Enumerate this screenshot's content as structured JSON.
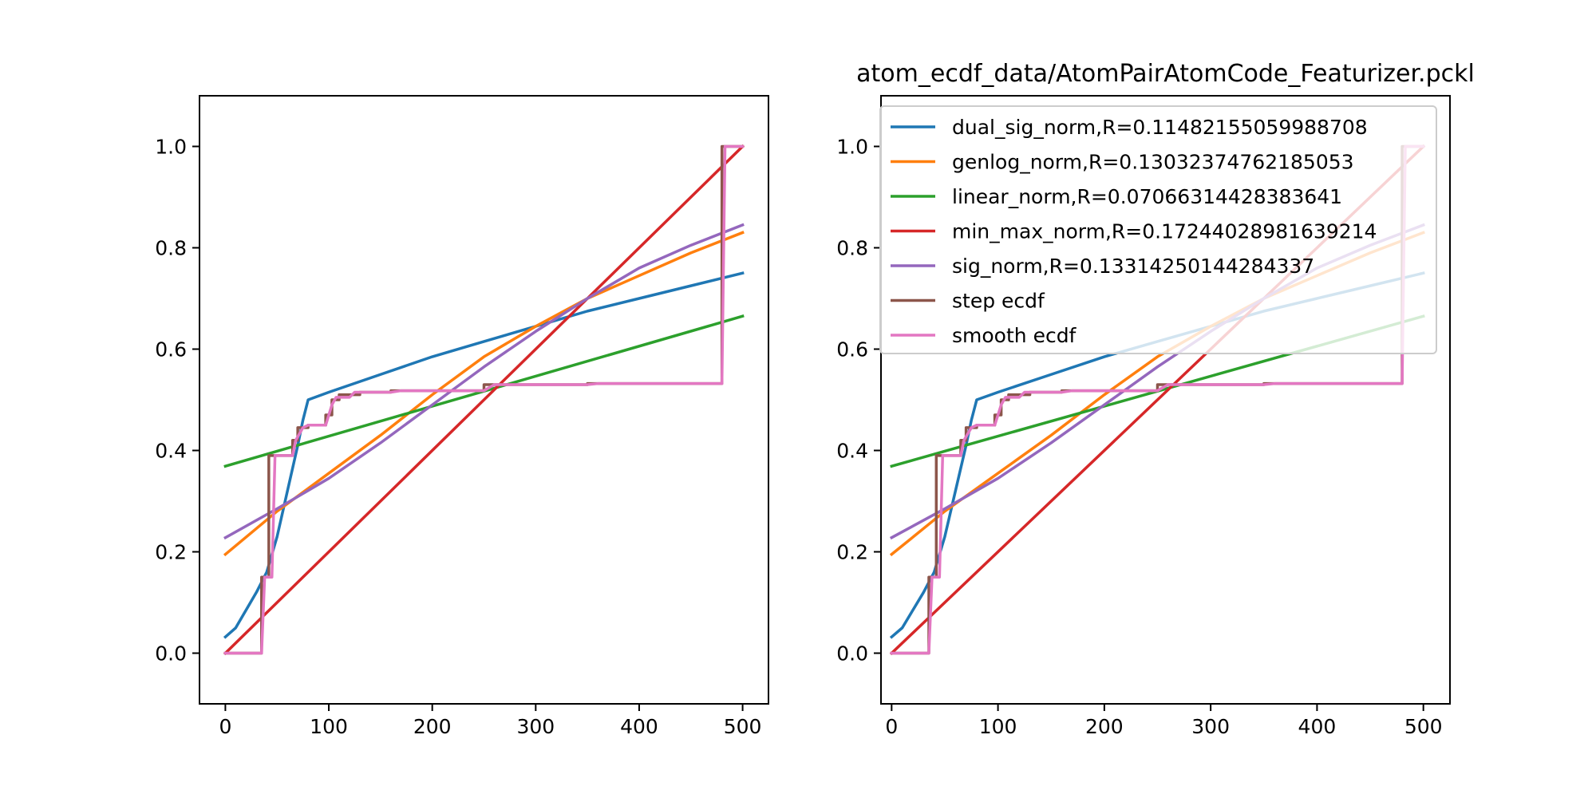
{
  "chart_data": [
    {
      "type": "line",
      "title": "",
      "xlabel": "",
      "ylabel": "",
      "xlim": [
        -25,
        525
      ],
      "ylim": [
        -0.1,
        1.1
      ],
      "xticks": [
        0,
        100,
        200,
        300,
        400,
        500
      ],
      "xtick_labels": [
        "0",
        "100",
        "200",
        "300",
        "400",
        "500"
      ],
      "yticks": [
        0.0,
        0.2,
        0.4,
        0.6,
        0.8,
        1.0
      ],
      "ytick_labels": [
        "0.0",
        "0.2",
        "0.4",
        "0.6",
        "0.8",
        "1.0"
      ],
      "grid": false,
      "legend": false,
      "series": [
        {
          "name": "dual_sig_norm,R=0.11482155059988708",
          "color": "#1f77b4",
          "x": [
            0,
            10,
            20,
            30,
            40,
            50,
            60,
            70,
            75,
            80,
            100,
            150,
            200,
            250,
            300,
            350,
            400,
            450,
            500
          ],
          "y": [
            0.032,
            0.05,
            0.085,
            0.12,
            0.16,
            0.23,
            0.32,
            0.41,
            0.46,
            0.5,
            0.515,
            0.55,
            0.585,
            0.615,
            0.645,
            0.675,
            0.7,
            0.725,
            0.75
          ]
        },
        {
          "name": "genlog_norm,R=0.13032374762185053",
          "color": "#ff7f0e",
          "x": [
            0,
            50,
            100,
            150,
            200,
            250,
            300,
            350,
            400,
            450,
            500
          ],
          "y": [
            0.195,
            0.28,
            0.355,
            0.43,
            0.51,
            0.585,
            0.645,
            0.7,
            0.745,
            0.79,
            0.83
          ]
        },
        {
          "name": "linear_norm,R=0.07066314428383641",
          "color": "#2ca02c",
          "x": [
            0,
            500
          ],
          "y": [
            0.369,
            0.665
          ]
        },
        {
          "name": "min_max_norm,R=0.17244028981639214",
          "color": "#d62728",
          "x": [
            0,
            500
          ],
          "y": [
            0.0,
            1.0
          ]
        },
        {
          "name": "sig_norm,R=0.13314250144284337",
          "color": "#9467bd",
          "x": [
            0,
            50,
            100,
            150,
            200,
            250,
            300,
            350,
            400,
            450,
            500
          ],
          "y": [
            0.228,
            0.285,
            0.345,
            0.415,
            0.49,
            0.565,
            0.635,
            0.7,
            0.76,
            0.805,
            0.845
          ]
        },
        {
          "name": "step ecdf",
          "color": "#8c564b",
          "x": [
            0,
            35,
            35,
            42,
            42,
            65,
            65,
            70,
            70,
            80,
            80,
            97,
            97,
            103,
            103,
            110,
            110,
            130,
            130,
            160,
            160,
            250,
            250,
            350,
            350,
            480,
            480,
            500
          ],
          "y": [
            0.0,
            0.0,
            0.15,
            0.15,
            0.39,
            0.39,
            0.42,
            0.42,
            0.445,
            0.445,
            0.45,
            0.45,
            0.47,
            0.47,
            0.5,
            0.5,
            0.51,
            0.51,
            0.515,
            0.515,
            0.518,
            0.518,
            0.53,
            0.53,
            0.532,
            0.532,
            1.0,
            1.0
          ]
        },
        {
          "name": "smooth ecdf",
          "color": "#e377c2",
          "x": [
            0,
            35,
            38,
            45,
            48,
            65,
            68,
            75,
            80,
            97,
            100,
            103,
            107,
            120,
            125,
            160,
            170,
            250,
            260,
            350,
            360,
            480,
            483,
            500
          ],
          "y": [
            0.0,
            0.0,
            0.15,
            0.15,
            0.39,
            0.39,
            0.42,
            0.445,
            0.45,
            0.45,
            0.47,
            0.49,
            0.505,
            0.505,
            0.515,
            0.515,
            0.518,
            0.518,
            0.53,
            0.53,
            0.532,
            0.532,
            1.0,
            1.0
          ]
        }
      ]
    },
    {
      "type": "line",
      "title": "atom_ecdf_data/AtomPairAtomCode_Featurizer.pckl",
      "xlabel": "",
      "ylabel": "",
      "xlim": [
        -10,
        525
      ],
      "ylim": [
        -0.1,
        1.1
      ],
      "xticks": [
        0,
        100,
        200,
        300,
        400,
        500
      ],
      "xtick_labels": [
        "0",
        "100",
        "200",
        "300",
        "400",
        "500"
      ],
      "yticks": [
        0.0,
        0.2,
        0.4,
        0.6,
        0.8,
        1.0
      ],
      "ytick_labels": [
        "0.0",
        "0.2",
        "0.4",
        "0.6",
        "0.8",
        "1.0"
      ],
      "grid": false,
      "legend": "top-right",
      "series": [
        {
          "name": "dual_sig_norm,R=0.11482155059988708",
          "color": "#1f77b4",
          "x": [
            0,
            10,
            20,
            30,
            40,
            50,
            60,
            70,
            75,
            80,
            100,
            150,
            200,
            250,
            300,
            350,
            400,
            450,
            500
          ],
          "y": [
            0.032,
            0.05,
            0.085,
            0.12,
            0.16,
            0.23,
            0.32,
            0.41,
            0.46,
            0.5,
            0.515,
            0.55,
            0.585,
            0.615,
            0.645,
            0.675,
            0.7,
            0.725,
            0.75
          ]
        },
        {
          "name": "genlog_norm,R=0.13032374762185053",
          "color": "#ff7f0e",
          "x": [
            0,
            50,
            100,
            150,
            200,
            250,
            300,
            350,
            400,
            450,
            500
          ],
          "y": [
            0.195,
            0.28,
            0.355,
            0.43,
            0.51,
            0.585,
            0.645,
            0.7,
            0.745,
            0.79,
            0.83
          ]
        },
        {
          "name": "linear_norm,R=0.07066314428383641",
          "color": "#2ca02c",
          "x": [
            0,
            500
          ],
          "y": [
            0.369,
            0.665
          ]
        },
        {
          "name": "min_max_norm,R=0.17244028981639214",
          "color": "#d62728",
          "x": [
            0,
            500
          ],
          "y": [
            0.0,
            1.0
          ]
        },
        {
          "name": "sig_norm,R=0.13314250144284337",
          "color": "#9467bd",
          "x": [
            0,
            50,
            100,
            150,
            200,
            250,
            300,
            350,
            400,
            450,
            500
          ],
          "y": [
            0.228,
            0.285,
            0.345,
            0.415,
            0.49,
            0.565,
            0.635,
            0.7,
            0.76,
            0.805,
            0.845
          ]
        },
        {
          "name": "step ecdf",
          "color": "#8c564b",
          "x": [
            0,
            35,
            35,
            42,
            42,
            65,
            65,
            70,
            70,
            80,
            80,
            97,
            97,
            103,
            103,
            110,
            110,
            130,
            130,
            160,
            160,
            250,
            250,
            350,
            350,
            480,
            480,
            500
          ],
          "y": [
            0.0,
            0.0,
            0.15,
            0.15,
            0.39,
            0.39,
            0.42,
            0.42,
            0.445,
            0.445,
            0.45,
            0.45,
            0.47,
            0.47,
            0.5,
            0.5,
            0.51,
            0.51,
            0.515,
            0.515,
            0.518,
            0.518,
            0.53,
            0.53,
            0.532,
            0.532,
            1.0,
            1.0
          ]
        },
        {
          "name": "smooth ecdf",
          "color": "#e377c2",
          "x": [
            0,
            35,
            38,
            45,
            48,
            65,
            68,
            75,
            80,
            97,
            100,
            103,
            107,
            120,
            125,
            160,
            170,
            250,
            260,
            350,
            360,
            480,
            483,
            500
          ],
          "y": [
            0.0,
            0.0,
            0.15,
            0.15,
            0.39,
            0.39,
            0.42,
            0.445,
            0.45,
            0.45,
            0.47,
            0.49,
            0.505,
            0.505,
            0.515,
            0.515,
            0.518,
            0.518,
            0.53,
            0.53,
            0.532,
            0.532,
            1.0,
            1.0
          ]
        }
      ]
    }
  ]
}
